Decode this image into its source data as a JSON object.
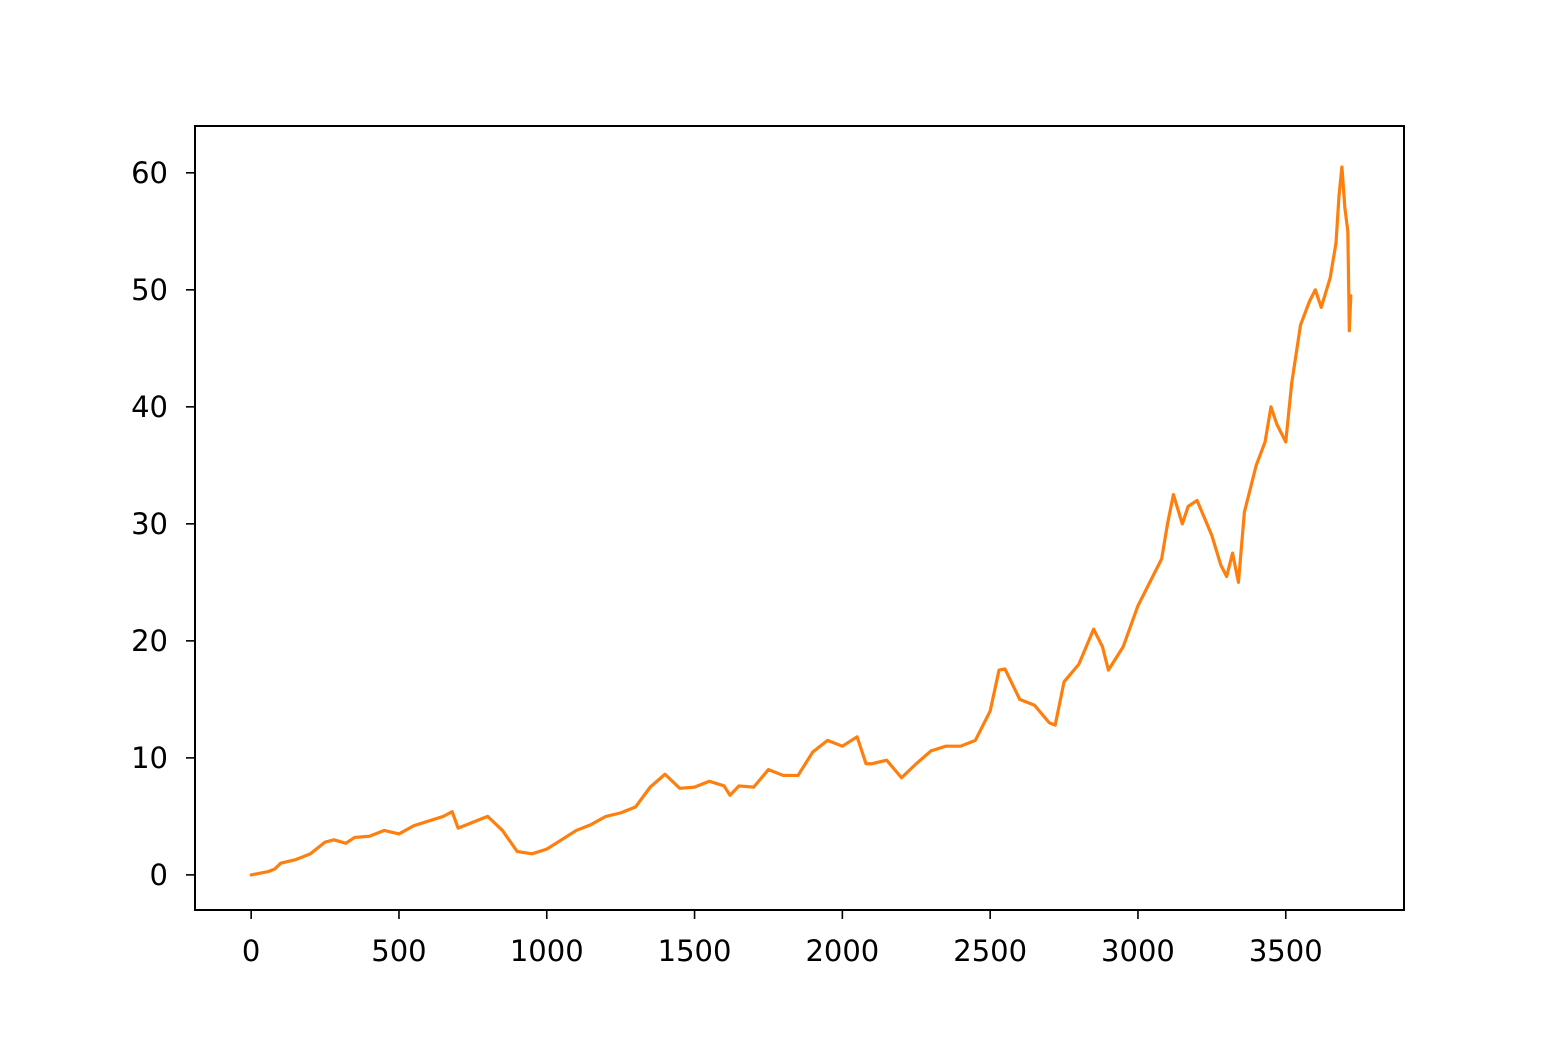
{
  "chart_data": {
    "type": "line",
    "title": "",
    "xlabel": "",
    "ylabel": "",
    "xlim": [
      -190,
      3900
    ],
    "ylim": [
      -3,
      64
    ],
    "x_ticks": [
      0,
      500,
      1000,
      1500,
      2000,
      2500,
      3000,
      3500
    ],
    "y_ticks": [
      0,
      10,
      20,
      30,
      40,
      50,
      60
    ],
    "x_tick_labels": [
      "0",
      "500",
      "1000",
      "1500",
      "2000",
      "2500",
      "3000",
      "3500"
    ],
    "y_tick_labels": [
      "0",
      "10",
      "20",
      "30",
      "40",
      "50",
      "60"
    ],
    "grid": false,
    "legend": "none",
    "series": [
      {
        "color": "#ff7f0e",
        "x": [
          0,
          60,
          80,
          100,
          150,
          200,
          250,
          280,
          320,
          350,
          400,
          450,
          500,
          550,
          600,
          650,
          680,
          700,
          750,
          800,
          850,
          900,
          950,
          1000,
          1050,
          1100,
          1150,
          1200,
          1250,
          1300,
          1350,
          1400,
          1450,
          1500,
          1550,
          1600,
          1620,
          1650,
          1700,
          1750,
          1800,
          1850,
          1900,
          1950,
          2000,
          2050,
          2080,
          2100,
          2150,
          2200,
          2250,
          2300,
          2350,
          2400,
          2450,
          2500,
          2530,
          2550,
          2600,
          2650,
          2700,
          2720,
          2750,
          2800,
          2850,
          2880,
          2900,
          2950,
          3000,
          3050,
          3080,
          3100,
          3120,
          3150,
          3170,
          3200,
          3250,
          3280,
          3300,
          3320,
          3340,
          3360,
          3400,
          3430,
          3450,
          3470,
          3500,
          3520,
          3550,
          3580,
          3600,
          3620,
          3650,
          3670,
          3680,
          3690,
          3700,
          3710,
          3715,
          3720
        ],
        "y": [
          0,
          0.3,
          0.5,
          1,
          1.3,
          1.8,
          2.8,
          3,
          2.7,
          3.2,
          3.3,
          3.8,
          3.5,
          4.2,
          4.6,
          5,
          5.4,
          4,
          4.5,
          5,
          3.8,
          2,
          1.8,
          2.2,
          3,
          3.8,
          4.3,
          5,
          5.3,
          5.8,
          7.5,
          8.6,
          7.4,
          7.5,
          8,
          7.6,
          6.8,
          7.6,
          7.5,
          9,
          8.5,
          8.5,
          10.5,
          11.5,
          11,
          11.8,
          9.5,
          9.5,
          9.8,
          8.3,
          9.5,
          10.6,
          11,
          11,
          11.5,
          14,
          17.5,
          17.6,
          15,
          14.5,
          13,
          12.8,
          16.5,
          18,
          21,
          19.5,
          17.5,
          19.5,
          23,
          25.5,
          27,
          30,
          32.5,
          30,
          31.5,
          32,
          29,
          26.5,
          25.5,
          27.5,
          25,
          31,
          35,
          37,
          40,
          38.5,
          37,
          42,
          47,
          49,
          50,
          48.5,
          51,
          54,
          58,
          60.5,
          57,
          55,
          46.5,
          49.5
        ]
      }
    ]
  }
}
